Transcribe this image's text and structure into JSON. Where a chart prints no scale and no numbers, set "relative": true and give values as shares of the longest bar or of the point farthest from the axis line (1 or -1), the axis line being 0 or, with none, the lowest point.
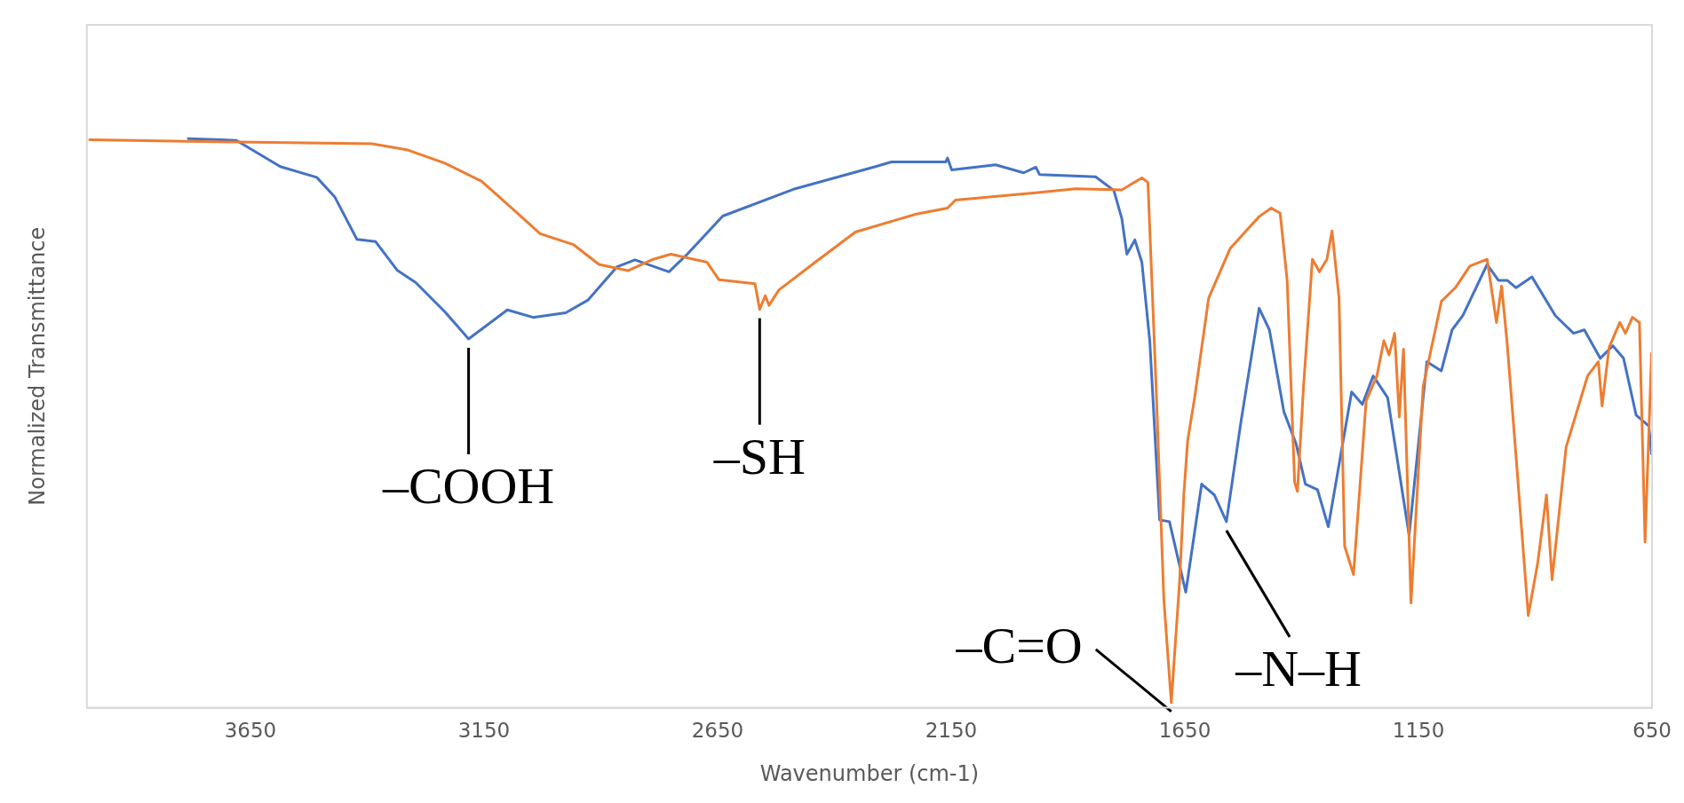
{
  "chart_data": {
    "type": "line",
    "relative": true,
    "xlabel": "Wavenumber (cm-1)",
    "ylabel": "Normalized Transmittance",
    "xlim": [
      4000,
      650
    ],
    "xticks": [
      3650,
      3150,
      2650,
      2150,
      1650,
      1150,
      650
    ],
    "grid": false,
    "legend": false,
    "series": [
      {
        "color": "#4472c4",
        "x": [
          3783,
          3680,
          3586,
          3508,
          3469,
          3422,
          3382,
          3336,
          3296,
          3234,
          3183,
          3100,
          3045,
          2975,
          2928,
          2865,
          2827,
          2754,
          2715,
          2639,
          2484,
          2312,
          2278,
          2162,
          2158,
          2149,
          2055,
          1995,
          1969,
          1961,
          1841,
          1802,
          1785,
          1774,
          1757,
          1742,
          1725,
          1704,
          1683,
          1648,
          1614,
          1587,
          1561,
          1530,
          1491,
          1469,
          1438,
          1412,
          1392,
          1366,
          1343,
          1293,
          1270,
          1247,
          1216,
          1170,
          1132,
          1101,
          1078,
          1055,
          1003,
          979,
          960,
          941,
          907,
          857,
          818,
          795,
          761,
          734,
          711,
          684,
          657,
          651
        ],
        "values": [
          1.0,
          0.997,
          0.951,
          0.932,
          0.897,
          0.823,
          0.819,
          0.769,
          0.747,
          0.696,
          0.648,
          0.699,
          0.686,
          0.694,
          0.716,
          0.775,
          0.787,
          0.766,
          0.797,
          0.864,
          0.912,
          0.951,
          0.959,
          0.959,
          0.966,
          0.945,
          0.954,
          0.94,
          0.95,
          0.937,
          0.933,
          0.909,
          0.86,
          0.797,
          0.822,
          0.783,
          0.644,
          0.33,
          0.327,
          0.203,
          0.393,
          0.374,
          0.327,
          0.502,
          0.702,
          0.664,
          0.52,
          0.464,
          0.393,
          0.383,
          0.318,
          0.555,
          0.533,
          0.583,
          0.545,
          0.303,
          0.608,
          0.592,
          0.664,
          0.689,
          0.779,
          0.751,
          0.751,
          0.738,
          0.757,
          0.689,
          0.658,
          0.664,
          0.614,
          0.636,
          0.614,
          0.514,
          0.495,
          0.446
        ]
      },
      {
        "color": "#ed7d31",
        "x": [
          3994,
          3680,
          3390,
          3313,
          3234,
          3155,
          3085,
          3030,
          2959,
          2904,
          2842,
          2788,
          2750,
          2673,
          2647,
          2570,
          2560,
          2548,
          2540,
          2519,
          2441,
          2355,
          2227,
          2158,
          2141,
          1969,
          1884,
          1785,
          1742,
          1729,
          1712,
          1695,
          1679,
          1661,
          1652,
          1644,
          1629,
          1599,
          1553,
          1522,
          1491,
          1465,
          1446,
          1431,
          1415,
          1409,
          1396,
          1377,
          1362,
          1346,
          1335,
          1320,
          1308,
          1289,
          1262,
          1239,
          1224,
          1213,
          1201,
          1191,
          1182,
          1166,
          1140,
          1101,
          1071,
          1040,
          1003,
          983,
          972,
          960,
          941,
          915,
          895,
          876,
          864,
          834,
          788,
          765,
          757,
          742,
          719,
          707,
          692,
          677,
          665,
          651
        ],
        "values": [
          0.998,
          0.994,
          0.991,
          0.98,
          0.957,
          0.925,
          0.874,
          0.833,
          0.814,
          0.779,
          0.768,
          0.788,
          0.797,
          0.783,
          0.752,
          0.745,
          0.7,
          0.724,
          0.707,
          0.734,
          0.783,
          0.836,
          0.867,
          0.878,
          0.892,
          0.905,
          0.912,
          0.91,
          0.931,
          0.923,
          0.574,
          0.191,
          0.009,
          0.225,
          0.377,
          0.469,
          0.545,
          0.72,
          0.807,
          0.835,
          0.863,
          0.878,
          0.869,
          0.751,
          0.396,
          0.38,
          0.564,
          0.788,
          0.766,
          0.788,
          0.838,
          0.72,
          0.284,
          0.234,
          0.539,
          0.583,
          0.645,
          0.62,
          0.658,
          0.511,
          0.63,
          0.184,
          0.564,
          0.714,
          0.738,
          0.776,
          0.788,
          0.677,
          0.741,
          0.639,
          0.44,
          0.162,
          0.253,
          0.374,
          0.225,
          0.458,
          0.583,
          0.608,
          0.53,
          0.633,
          0.677,
          0.658,
          0.686,
          0.677,
          0.291,
          0.623
        ]
      }
    ],
    "annotations": [
      {
        "text": "–COOH",
        "x": 3183,
        "y": 0.648
      },
      {
        "text": "–SH",
        "x": 2560,
        "y": 0.7
      },
      {
        "text": "–C=O",
        "x": 1679,
        "y": 0.009
      },
      {
        "text": "–N–H",
        "x": 1561,
        "y": 0.327
      }
    ]
  }
}
